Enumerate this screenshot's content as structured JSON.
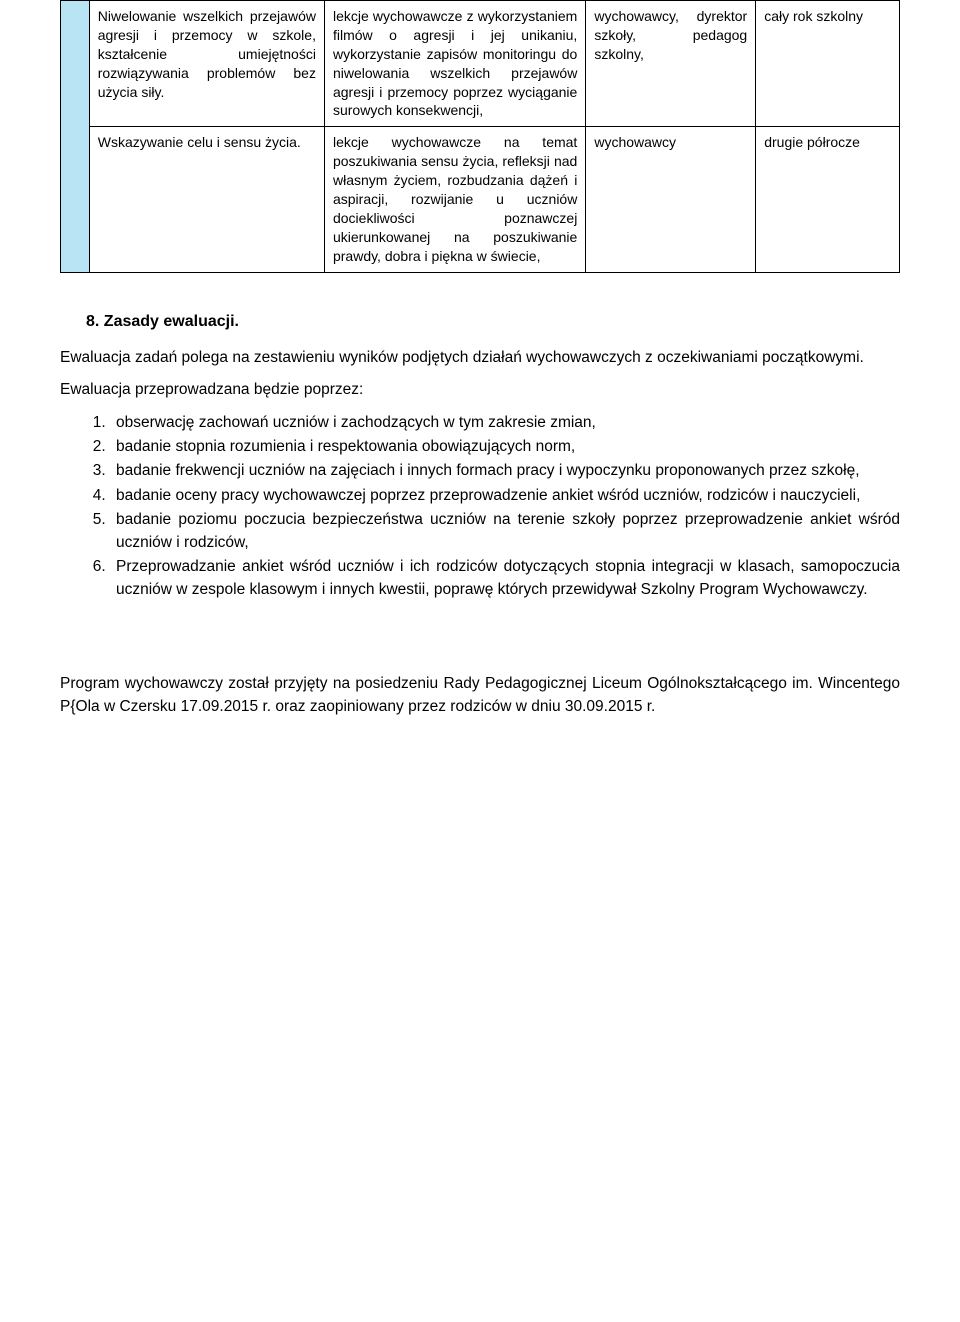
{
  "table": {
    "rows": [
      {
        "col1": "Niwelowanie wszelkich przejawów agresji i przemocy w szkole, kształcenie umiejętności rozwiązywania problemów bez użycia siły.",
        "col2": "lekcje wychowawcze z wykorzystaniem filmów o agresji i jej unikaniu, wykorzystanie zapisów monitoringu do niwelowania wszelkich przejawów agresji i przemocy poprzez wyciąganie surowych konsekwencji,",
        "col3": "wychowawcy, dyrektor szkoły, pedagog szkolny,",
        "col4": "cały rok szkolny"
      },
      {
        "col1": "Wskazywanie celu i sensu życia.",
        "col2": "lekcje wychowawcze na temat poszukiwania sensu życia, refleksji nad własnym życiem, rozbudzania dążeń i aspiracji, rozwijanie u uczniów dociekliwości poznawczej ukierunkowanej na poszukiwanie prawdy, dobra i piękna w świecie,",
        "col3": "wychowawcy",
        "col4": "drugie półrocze"
      }
    ]
  },
  "section": {
    "number": "8.",
    "title": "Zasady ewaluacji."
  },
  "para1": "Ewaluacja zadań polega na zestawieniu wyników podjętych działań wychowawczych z oczekiwaniami początkowymi.",
  "para2": "Ewaluacja przeprowadzana będzie poprzez:",
  "list": [
    "obserwację zachowań uczniów i zachodzących w tym zakresie zmian,",
    "badanie stopnia rozumienia i respektowania obowiązujących norm,",
    "badanie frekwencji uczniów na zajęciach i innych formach pracy i wypoczynku proponowanych przez szkołę,",
    "badanie oceny pracy wychowawczej poprzez przeprowadzenie ankiet wśród uczniów, rodziców i nauczycieli,",
    "badanie poziomu poczucia bezpieczeństwa uczniów na terenie szkoły poprzez przeprowadzenie ankiet wśród uczniów i rodziców,",
    "Przeprowadzanie ankiet wśród uczniów i ich rodziców dotyczących stopnia integracji w klasach, samopoczucia uczniów w zespole klasowym i innych kwestii, poprawę których przewidywał Szkolny Program Wychowawczy."
  ],
  "footer": "Program wychowawczy został przyjęty na posiedzeniu Rady Pedagogicznej Liceum Ogólnokształcącego im. Wincentego P{Ola w Czersku 17.09.2015 r. oraz zaopiniowany przez rodziców w dniu 30.09.2015 r."
}
